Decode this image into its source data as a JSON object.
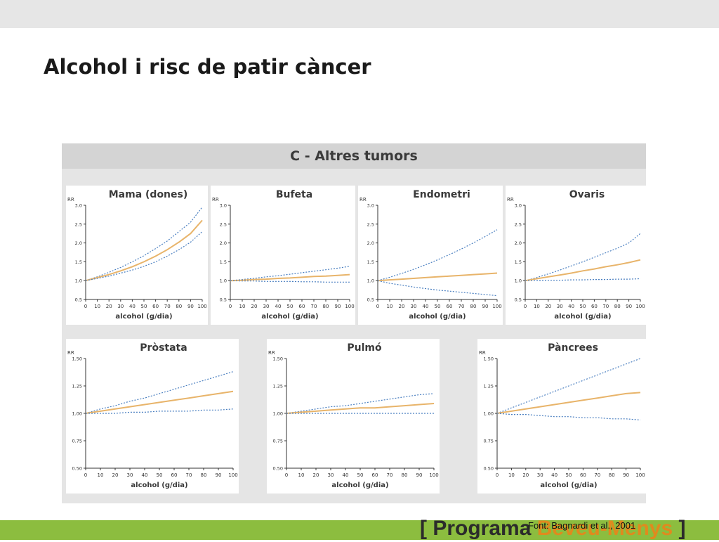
{
  "slide": {
    "title": "Alcohol i risc de patir càncer",
    "figure_title": "C - Altres tumors",
    "source": "Font: Bagnardi et al., 2001",
    "brand": {
      "bracket_open": "[",
      "word1": "Programa",
      "word2": "Beveu-Menys",
      "bracket_close": "]"
    }
  },
  "colors": {
    "estimate": "#e8b46a",
    "confidence_interval": "#4a7fc0",
    "axis": "#333333",
    "figure_background": "#e5e5e5",
    "figure_banner": "#d4d4d4",
    "footer_bar": "#8cbd3f",
    "brand_accent": "#e08a1e"
  },
  "chart_data": [
    {
      "type": "line",
      "title": "Mama (dones)",
      "xlabel": "alcohol (g/dia)",
      "ylabel": "RR",
      "xlim": [
        0,
        100
      ],
      "ylim": [
        0.5,
        3.0
      ],
      "xticks": [
        0,
        10,
        20,
        30,
        40,
        50,
        60,
        70,
        80,
        90,
        100
      ],
      "yticks": [
        0.5,
        1.0,
        1.5,
        2.0,
        2.5,
        3.0
      ],
      "ytick_labels": [
        "0.5",
        "1.0",
        "1.5",
        "2.0",
        "2.5",
        "3.0"
      ],
      "legend": "none",
      "grid": false,
      "x": [
        0,
        10,
        20,
        30,
        40,
        50,
        60,
        70,
        80,
        90,
        100
      ],
      "series": [
        {
          "role": "upper",
          "values": [
            1.0,
            1.1,
            1.22,
            1.35,
            1.5,
            1.66,
            1.85,
            2.05,
            2.3,
            2.55,
            2.95
          ]
        },
        {
          "role": "estimate",
          "values": [
            1.0,
            1.08,
            1.16,
            1.26,
            1.37,
            1.5,
            1.65,
            1.82,
            2.02,
            2.25,
            2.6
          ]
        },
        {
          "role": "lower",
          "values": [
            1.0,
            1.06,
            1.12,
            1.2,
            1.28,
            1.38,
            1.5,
            1.65,
            1.82,
            2.02,
            2.3
          ]
        }
      ]
    },
    {
      "type": "line",
      "title": "Bufeta",
      "xlabel": "alcohol (g/dia)",
      "ylabel": "RR",
      "xlim": [
        0,
        100
      ],
      "ylim": [
        0.5,
        3.0
      ],
      "xticks": [
        0,
        10,
        20,
        30,
        40,
        50,
        60,
        70,
        80,
        90,
        100
      ],
      "yticks": [
        0.5,
        1.0,
        1.5,
        2.0,
        2.5,
        3.0
      ],
      "ytick_labels": [
        "0.5",
        "1.0",
        "1.5",
        "2.0",
        "2.5",
        "3.0"
      ],
      "legend": "none",
      "grid": false,
      "x": [
        0,
        10,
        20,
        30,
        40,
        50,
        60,
        70,
        80,
        90,
        100
      ],
      "series": [
        {
          "role": "upper",
          "values": [
            1.0,
            1.03,
            1.06,
            1.1,
            1.13,
            1.17,
            1.21,
            1.25,
            1.29,
            1.33,
            1.38
          ]
        },
        {
          "role": "estimate",
          "values": [
            1.0,
            1.01,
            1.03,
            1.04,
            1.06,
            1.07,
            1.09,
            1.11,
            1.12,
            1.14,
            1.16
          ]
        },
        {
          "role": "lower",
          "values": [
            1.0,
            0.99,
            0.99,
            0.98,
            0.98,
            0.98,
            0.97,
            0.97,
            0.96,
            0.96,
            0.96
          ]
        }
      ]
    },
    {
      "type": "line",
      "title": "Endometri",
      "xlabel": "alcohol (g/dia)",
      "ylabel": "RR",
      "xlim": [
        0,
        100
      ],
      "ylim": [
        0.5,
        3.0
      ],
      "xticks": [
        0,
        10,
        20,
        30,
        40,
        50,
        60,
        70,
        80,
        90,
        100
      ],
      "yticks": [
        0.5,
        1.0,
        1.5,
        2.0,
        2.5,
        3.0
      ],
      "ytick_labels": [
        "0.5",
        "1.0",
        "1.5",
        "2.0",
        "2.5",
        "3.0"
      ],
      "legend": "none",
      "grid": false,
      "x": [
        0,
        10,
        20,
        30,
        40,
        50,
        60,
        70,
        80,
        90,
        100
      ],
      "series": [
        {
          "role": "upper",
          "values": [
            1.0,
            1.09,
            1.19,
            1.3,
            1.42,
            1.55,
            1.69,
            1.84,
            2.0,
            2.17,
            2.35
          ]
        },
        {
          "role": "estimate",
          "values": [
            1.0,
            1.02,
            1.04,
            1.06,
            1.08,
            1.1,
            1.12,
            1.14,
            1.16,
            1.18,
            1.2
          ]
        },
        {
          "role": "lower",
          "values": [
            1.0,
            0.93,
            0.88,
            0.83,
            0.79,
            0.75,
            0.72,
            0.69,
            0.66,
            0.63,
            0.6
          ]
        }
      ]
    },
    {
      "type": "line",
      "title": "Ovaris",
      "xlabel": "alcohol (g/dia)",
      "ylabel": "RR",
      "xlim": [
        0,
        100
      ],
      "ylim": [
        0.5,
        3.0
      ],
      "xticks": [
        0,
        10,
        20,
        30,
        40,
        50,
        60,
        70,
        80,
        90,
        100
      ],
      "yticks": [
        0.5,
        1.0,
        1.5,
        2.0,
        2.5,
        3.0
      ],
      "ytick_labels": [
        "0.5",
        "1.0",
        "1.5",
        "2.0",
        "2.5",
        "3.0"
      ],
      "legend": "none",
      "grid": false,
      "x": [
        0,
        10,
        20,
        30,
        40,
        50,
        60,
        70,
        80,
        90,
        100
      ],
      "series": [
        {
          "role": "upper",
          "values": [
            1.0,
            1.08,
            1.18,
            1.28,
            1.39,
            1.5,
            1.62,
            1.74,
            1.86,
            2.0,
            2.25
          ]
        },
        {
          "role": "estimate",
          "values": [
            1.0,
            1.05,
            1.1,
            1.15,
            1.2,
            1.26,
            1.31,
            1.37,
            1.42,
            1.48,
            1.55
          ]
        },
        {
          "role": "lower",
          "values": [
            1.0,
            1.0,
            1.01,
            1.01,
            1.02,
            1.02,
            1.03,
            1.03,
            1.04,
            1.04,
            1.05
          ]
        }
      ]
    },
    {
      "type": "line",
      "title": "Pròstata",
      "xlabel": "alcohol (g/dia)",
      "ylabel": "RR",
      "xlim": [
        0,
        100
      ],
      "ylim": [
        0.5,
        1.5
      ],
      "xticks": [
        0,
        10,
        20,
        30,
        40,
        50,
        60,
        70,
        80,
        90,
        100
      ],
      "yticks": [
        0.5,
        0.75,
        1.0,
        1.25,
        1.5
      ],
      "ytick_labels": [
        "0.50",
        "0.75",
        "1.00",
        "1.25",
        "1.50"
      ],
      "legend": "none",
      "grid": false,
      "x": [
        0,
        10,
        20,
        30,
        40,
        50,
        60,
        70,
        80,
        90,
        100
      ],
      "series": [
        {
          "role": "upper",
          "values": [
            1.0,
            1.04,
            1.07,
            1.11,
            1.14,
            1.18,
            1.22,
            1.26,
            1.3,
            1.34,
            1.38
          ]
        },
        {
          "role": "estimate",
          "values": [
            1.0,
            1.02,
            1.04,
            1.06,
            1.08,
            1.1,
            1.12,
            1.14,
            1.16,
            1.18,
            1.2
          ]
        },
        {
          "role": "lower",
          "values": [
            1.0,
            1.0,
            1.0,
            1.01,
            1.01,
            1.02,
            1.02,
            1.02,
            1.03,
            1.03,
            1.04
          ]
        }
      ]
    },
    {
      "type": "line",
      "title": "Pulmó",
      "xlabel": "alcohol (g/dia)",
      "ylabel": "RR",
      "xlim": [
        0,
        100
      ],
      "ylim": [
        0.5,
        1.5
      ],
      "xticks": [
        0,
        10,
        20,
        30,
        40,
        50,
        60,
        70,
        80,
        90,
        100
      ],
      "yticks": [
        0.5,
        0.75,
        1.0,
        1.25,
        1.5
      ],
      "ytick_labels": [
        "0.50",
        "0.75",
        "1.00",
        "1.25",
        "1.50"
      ],
      "legend": "none",
      "grid": false,
      "x": [
        0,
        10,
        20,
        30,
        40,
        50,
        60,
        70,
        80,
        90,
        100
      ],
      "series": [
        {
          "role": "upper",
          "values": [
            1.0,
            1.02,
            1.04,
            1.06,
            1.07,
            1.09,
            1.11,
            1.13,
            1.15,
            1.17,
            1.18
          ]
        },
        {
          "role": "estimate",
          "values": [
            1.0,
            1.01,
            1.02,
            1.03,
            1.04,
            1.05,
            1.05,
            1.06,
            1.07,
            1.08,
            1.09
          ]
        },
        {
          "role": "lower",
          "values": [
            1.0,
            1.0,
            1.0,
            1.0,
            1.0,
            1.0,
            1.0,
            1.0,
            1.0,
            1.0,
            1.0
          ]
        }
      ]
    },
    {
      "type": "line",
      "title": "Pàncrees",
      "xlabel": "alcohol (g/dia)",
      "ylabel": "RR",
      "xlim": [
        0,
        100
      ],
      "ylim": [
        0.5,
        1.5
      ],
      "xticks": [
        0,
        10,
        20,
        30,
        40,
        50,
        60,
        70,
        80,
        90,
        100
      ],
      "yticks": [
        0.5,
        0.75,
        1.0,
        1.25,
        1.5
      ],
      "ytick_labels": [
        "0.50",
        "0.75",
        "1.00",
        "1.25",
        "1.50"
      ],
      "legend": "none",
      "grid": false,
      "x": [
        0,
        10,
        20,
        30,
        40,
        50,
        60,
        70,
        80,
        90,
        100
      ],
      "series": [
        {
          "role": "upper",
          "values": [
            1.0,
            1.05,
            1.1,
            1.15,
            1.2,
            1.25,
            1.3,
            1.35,
            1.4,
            1.45,
            1.5
          ]
        },
        {
          "role": "estimate",
          "values": [
            1.0,
            1.02,
            1.04,
            1.06,
            1.08,
            1.1,
            1.12,
            1.14,
            1.16,
            1.18,
            1.19
          ]
        },
        {
          "role": "lower",
          "values": [
            1.0,
            0.99,
            0.99,
            0.98,
            0.97,
            0.97,
            0.96,
            0.96,
            0.95,
            0.95,
            0.94
          ]
        }
      ]
    }
  ]
}
